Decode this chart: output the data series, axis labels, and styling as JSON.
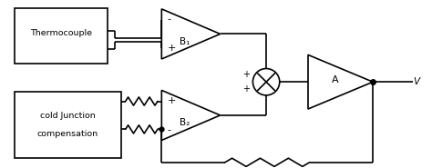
{
  "bg_color": "#ffffff",
  "line_color": "#000000",
  "line_width": 1.2,
  "fig_width": 4.74,
  "fig_height": 1.85,
  "dpi": 100,
  "xlim": [
    0,
    10
  ],
  "ylim": [
    0,
    4
  ]
}
